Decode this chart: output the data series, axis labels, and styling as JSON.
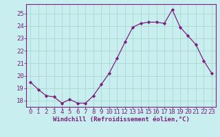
{
  "x": [
    0,
    1,
    2,
    3,
    4,
    5,
    6,
    7,
    8,
    9,
    10,
    11,
    12,
    13,
    14,
    15,
    16,
    17,
    18,
    19,
    20,
    21,
    22,
    23
  ],
  "y": [
    19.5,
    18.9,
    18.4,
    18.3,
    17.8,
    18.1,
    17.8,
    17.8,
    18.4,
    19.3,
    20.2,
    21.4,
    22.7,
    23.9,
    24.2,
    24.3,
    24.3,
    24.2,
    25.3,
    23.9,
    23.2,
    22.5,
    21.2,
    20.2
  ],
  "line_color": "#7a1f7a",
  "marker": "D",
  "marker_size": 2.2,
  "bg_color": "#c8eef0",
  "grid_color": "#aad8cc",
  "xlabel": "Windchill (Refroidissement éolien,°C)",
  "ylim": [
    17.5,
    25.75
  ],
  "xlim": [
    -0.5,
    23.5
  ],
  "yticks": [
    18,
    19,
    20,
    21,
    22,
    23,
    24,
    25
  ],
  "xticks": [
    0,
    1,
    2,
    3,
    4,
    5,
    6,
    7,
    8,
    9,
    10,
    11,
    12,
    13,
    14,
    15,
    16,
    17,
    18,
    19,
    20,
    21,
    22,
    23
  ],
  "tick_color": "#7a1f7a",
  "label_color": "#7a1f7a",
  "spine_color": "#7a1f7a",
  "tick_fontsize": 6.5,
  "xlabel_fontsize": 6.5
}
